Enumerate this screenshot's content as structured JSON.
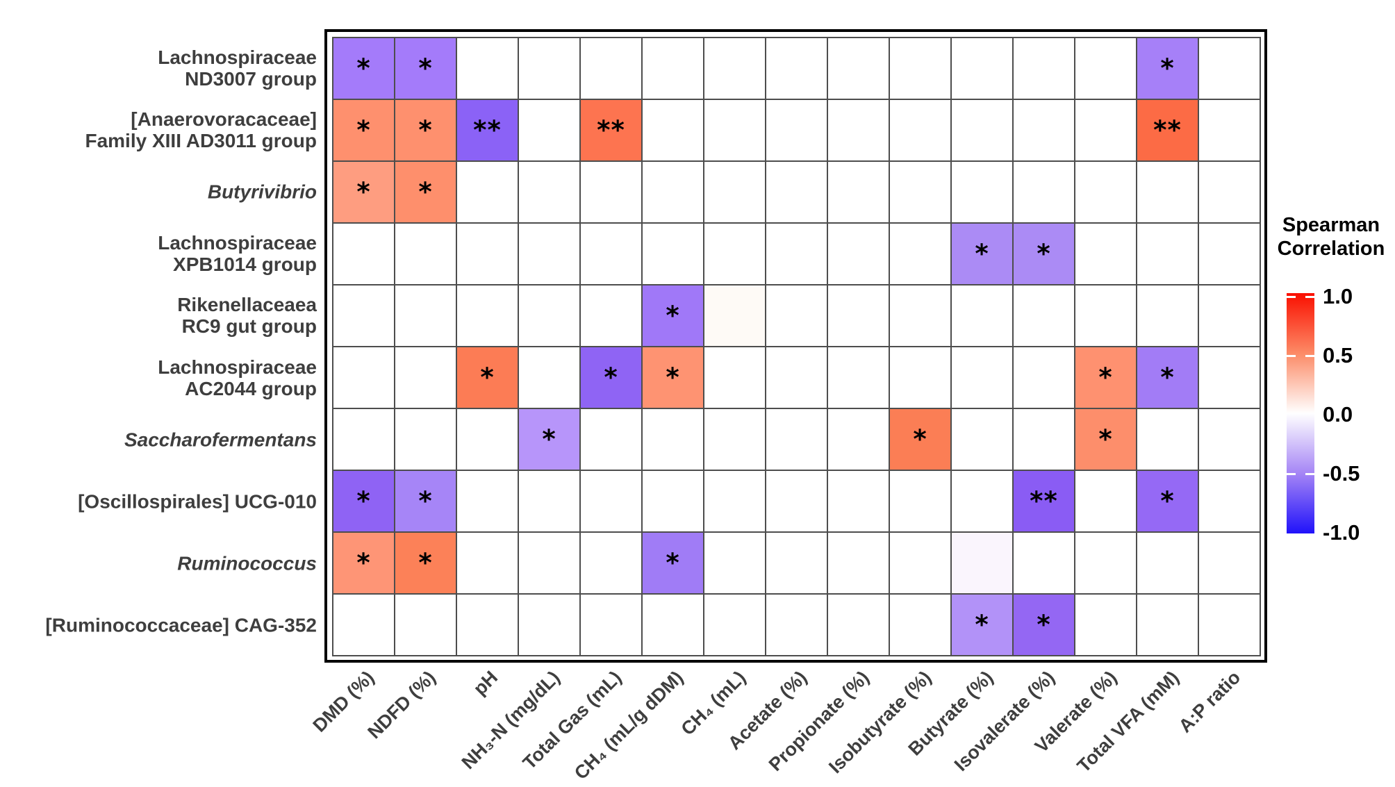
{
  "legend": {
    "title_line1": "Spearman",
    "title_line2": "Correlation",
    "tick_labels": [
      "1.0",
      "0.5",
      "0.0",
      "-0.5",
      "-1.0"
    ],
    "tick_values": [
      1.0,
      0.5,
      0.0,
      -0.5,
      -1.0
    ],
    "gradient": {
      "top": "#fa0f00",
      "middle": "#ffffff",
      "bottom": "#2012fa"
    }
  },
  "chart_data": {
    "type": "heatmap",
    "legend_title": "Spearman Correlation",
    "value_range": [
      -1.0,
      1.0
    ],
    "no_data_color": "#ffffff",
    "grid_line_color": "#4d4d4d",
    "significance_symbols": [
      "*",
      "**"
    ],
    "x_axis_labels": [
      "DMD (%)",
      "NDFD (%)",
      "pH",
      "NH₃-N (mg/dL)",
      "Total Gas (mL)",
      "CH₄ (mL/g dDM)",
      "CH₄ (mL)",
      "Acetate (%)",
      "Propionate (%)",
      "Isobutyrate (%)",
      "Butyrate (%)",
      "Isovalerate (%)",
      "Valerate (%)",
      "Total VFA (mM)",
      "A:P ratio"
    ],
    "y_axis_labels": [
      {
        "label": "Lachnospiraceae ND3007 group",
        "lines": [
          "Lachnospiraceae",
          "ND3007 group"
        ],
        "italic": false
      },
      {
        "label": "[Anaerovoracaceae] Family XIII AD3011 group",
        "lines": [
          "[Anaerovoracaceae]",
          "Family XIII AD3011 group"
        ],
        "italic": false
      },
      {
        "label": "Butyrivibrio",
        "lines": [
          "Butyrivibrio"
        ],
        "italic": true
      },
      {
        "label": "Lachnospiraceae XPB1014 group",
        "lines": [
          "Lachnospiraceae",
          "XPB1014 group"
        ],
        "italic": false
      },
      {
        "label": "Rikenellaceaea RC9 gut group",
        "lines": [
          "Rikenellaceaea",
          "RC9 gut group"
        ],
        "italic": false
      },
      {
        "label": "Lachnospiraceae AC2044 group",
        "lines": [
          "Lachnospiraceae",
          "AC2044 group"
        ],
        "italic": false
      },
      {
        "label": "Saccharofermentans",
        "lines": [
          "Saccharofermentans"
        ],
        "italic": true
      },
      {
        "label": "[Oscillospirales] UCG-010",
        "lines": [
          "[Oscillospirales] UCG-010"
        ],
        "italic": false
      },
      {
        "label": "Ruminococcus",
        "lines": [
          "Ruminococcus"
        ],
        "italic": true
      },
      {
        "label": "[Ruminococcaceae] CAG-352",
        "lines": [
          "[Ruminococcaceae] CAG-352"
        ],
        "italic": false
      }
    ],
    "cells": [
      {
        "row": 0,
        "col": 0,
        "value": -0.5,
        "color": "#a47bfa",
        "significance": "*"
      },
      {
        "row": 0,
        "col": 1,
        "value": -0.5,
        "color": "#a47bfa",
        "significance": "*"
      },
      {
        "row": 0,
        "col": 13,
        "value": -0.49,
        "color": "#a680f8",
        "significance": "*"
      },
      {
        "row": 1,
        "col": 0,
        "value": 0.52,
        "color": "#fe906e",
        "significance": "*"
      },
      {
        "row": 1,
        "col": 1,
        "value": 0.52,
        "color": "#fe906e",
        "significance": "*"
      },
      {
        "row": 1,
        "col": 2,
        "value": -0.65,
        "color": "#8b62f6",
        "significance": "**"
      },
      {
        "row": 1,
        "col": 4,
        "value": 0.66,
        "color": "#fd7450",
        "significance": "**"
      },
      {
        "row": 1,
        "col": 13,
        "value": 0.7,
        "color": "#fc6b45",
        "significance": "**"
      },
      {
        "row": 2,
        "col": 0,
        "value": 0.45,
        "color": "#fe9d80",
        "significance": "*"
      },
      {
        "row": 2,
        "col": 1,
        "value": 0.53,
        "color": "#fe8f6c",
        "significance": "*"
      },
      {
        "row": 3,
        "col": 10,
        "value": -0.46,
        "color": "#ab8bf5",
        "significance": "*"
      },
      {
        "row": 3,
        "col": 11,
        "value": -0.46,
        "color": "#ab8bf5",
        "significance": "*"
      },
      {
        "row": 4,
        "col": 5,
        "value": -0.53,
        "color": "#a078f8",
        "significance": "*"
      },
      {
        "row": 4,
        "col": 6,
        "value": 0.03,
        "color": "#fefaf6",
        "significance": ""
      },
      {
        "row": 5,
        "col": 2,
        "value": 0.62,
        "color": "#fc7c55",
        "significance": "*"
      },
      {
        "row": 5,
        "col": 4,
        "value": -0.62,
        "color": "#8f64f4",
        "significance": "*"
      },
      {
        "row": 5,
        "col": 5,
        "value": 0.51,
        "color": "#fe9372",
        "significance": "*"
      },
      {
        "row": 5,
        "col": 12,
        "value": 0.52,
        "color": "#fe9170",
        "significance": "*"
      },
      {
        "row": 5,
        "col": 13,
        "value": -0.51,
        "color": "#a27cf6",
        "significance": "*"
      },
      {
        "row": 6,
        "col": 3,
        "value": -0.4,
        "color": "#b795fa",
        "significance": "*"
      },
      {
        "row": 6,
        "col": 9,
        "value": 0.61,
        "color": "#fb7e55",
        "significance": "*"
      },
      {
        "row": 6,
        "col": 12,
        "value": 0.54,
        "color": "#fd8e6b",
        "significance": "*"
      },
      {
        "row": 7,
        "col": 0,
        "value": -0.62,
        "color": "#8f63f4",
        "significance": "*"
      },
      {
        "row": 7,
        "col": 1,
        "value": -0.48,
        "color": "#a685f7",
        "significance": "*"
      },
      {
        "row": 7,
        "col": 11,
        "value": -0.66,
        "color": "#8a5cf4",
        "significance": "**"
      },
      {
        "row": 7,
        "col": 13,
        "value": -0.59,
        "color": "#9569f5",
        "significance": "*"
      },
      {
        "row": 8,
        "col": 0,
        "value": 0.5,
        "color": "#fe9576",
        "significance": "*"
      },
      {
        "row": 8,
        "col": 1,
        "value": 0.6,
        "color": "#fc8158",
        "significance": "*"
      },
      {
        "row": 8,
        "col": 5,
        "value": -0.52,
        "color": "#a07cf6",
        "significance": "*"
      },
      {
        "row": 8,
        "col": 10,
        "value": -0.03,
        "color": "#faf5fd",
        "significance": ""
      },
      {
        "row": 9,
        "col": 10,
        "value": -0.42,
        "color": "#b292f8",
        "significance": "*"
      },
      {
        "row": 9,
        "col": 11,
        "value": -0.6,
        "color": "#9467f3",
        "significance": "*"
      }
    ]
  }
}
